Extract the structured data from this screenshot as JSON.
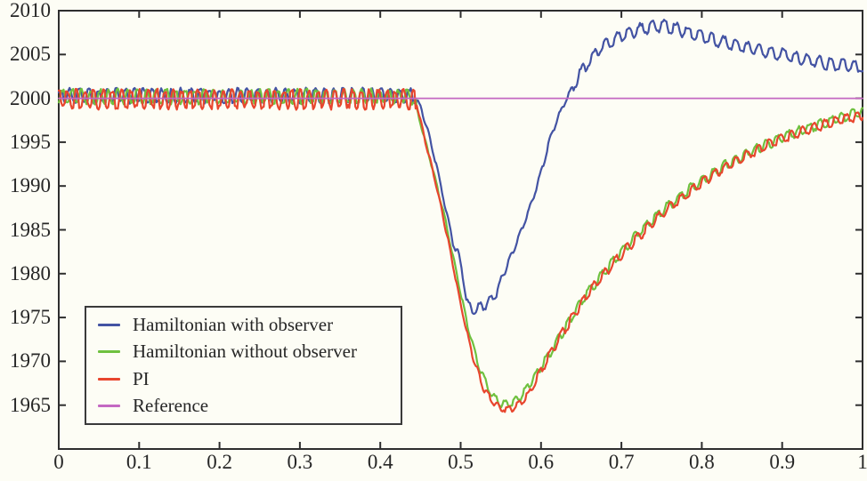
{
  "figure": {
    "background": "#fdfdf5",
    "frame_color": "#2e2e2e",
    "text_color": "#262626",
    "legend_border_color": "#3a3a3a"
  },
  "chart_data": {
    "type": "line",
    "title": "",
    "xlabel": "",
    "ylabel": "",
    "xlim": [
      0,
      1
    ],
    "ylim": [
      1960,
      2010
    ],
    "grid": false,
    "box": true,
    "tick_style": "inward-all-sides",
    "legend": {
      "position": "bottom-left",
      "border": true
    },
    "x_axis": {
      "tick_values": [
        0,
        0.1,
        0.2,
        0.3,
        0.4,
        0.5,
        0.6,
        0.7,
        0.8,
        0.9,
        1
      ],
      "tick_labels": [
        "0",
        "0.1",
        "0.2",
        "0.3",
        "0.4",
        "0.5",
        "0.6",
        "0.7",
        "0.8",
        "0.9",
        "1"
      ]
    },
    "y_axis": {
      "tick_values": [
        1965,
        1970,
        1975,
        1980,
        1985,
        1990,
        1995,
        2000,
        2005,
        2010
      ],
      "tick_labels": [
        "1965",
        "1970",
        "1975",
        "1980",
        "1985",
        "1990",
        "1995",
        "2000",
        "2005",
        "2010"
      ]
    },
    "series": [
      {
        "name": "Hamiltonian with observer",
        "color": "#4353a3",
        "width": 2.2,
        "trend": [
          [
            0,
            2000.3
          ],
          [
            0.443,
            2000.3
          ],
          [
            0.45,
            1999
          ],
          [
            0.46,
            1996
          ],
          [
            0.47,
            1992.3
          ],
          [
            0.48,
            1988
          ],
          [
            0.49,
            1983.8
          ],
          [
            0.497,
            1982.2
          ],
          [
            0.503,
            1979.5
          ],
          [
            0.508,
            1976.8
          ],
          [
            0.515,
            1975.6
          ],
          [
            0.522,
            1976.2
          ],
          [
            0.53,
            1976.3
          ],
          [
            0.545,
            1977.8
          ],
          [
            0.553,
            1980
          ],
          [
            0.565,
            1982.5
          ],
          [
            0.576,
            1985
          ],
          [
            0.586,
            1987.5
          ],
          [
            0.595,
            1990
          ],
          [
            0.603,
            1992.5
          ],
          [
            0.61,
            1995
          ],
          [
            0.62,
            1997.6
          ],
          [
            0.632,
            2000
          ],
          [
            0.645,
            2002.3
          ],
          [
            0.66,
            2004.3
          ],
          [
            0.675,
            2005.8
          ],
          [
            0.69,
            2006.7
          ],
          [
            0.705,
            2007.3
          ],
          [
            0.72,
            2007.8
          ],
          [
            0.735,
            2008.1
          ],
          [
            0.75,
            2008.3
          ],
          [
            0.765,
            2008
          ],
          [
            0.78,
            2007.6
          ],
          [
            0.81,
            2006.8
          ],
          [
            0.84,
            2006.1
          ],
          [
            0.87,
            2005.6
          ],
          [
            0.9,
            2005
          ],
          [
            0.93,
            2004.4
          ],
          [
            0.96,
            2003.9
          ],
          [
            1,
            2003.5
          ]
        ],
        "noise": [
          {
            "x0": 0,
            "x1": 0.445,
            "amp": 0.9,
            "period": 0.012
          },
          {
            "x0": 0.445,
            "x1": 0.49,
            "amp": 0.25,
            "period": 0.012
          },
          {
            "x0": 0.49,
            "x1": 0.56,
            "amp": 0.5,
            "period": 0.013
          },
          {
            "x0": 0.56,
            "x1": 0.64,
            "amp": 0.3,
            "period": 0.013
          },
          {
            "x0": 0.64,
            "x1": 1,
            "amp": 0.75,
            "period": 0.015
          }
        ]
      },
      {
        "name": "Hamiltonian without observer",
        "color": "#6fc13f",
        "width": 2.2,
        "trend": [
          [
            0,
            2000.2
          ],
          [
            0.441,
            2000.2
          ],
          [
            0.452,
            1996.5
          ],
          [
            0.465,
            1992
          ],
          [
            0.48,
            1986.5
          ],
          [
            0.495,
            1980
          ],
          [
            0.51,
            1973.5
          ],
          [
            0.525,
            1968.8
          ],
          [
            0.54,
            1966
          ],
          [
            0.55,
            1965.2
          ],
          [
            0.56,
            1965.1
          ],
          [
            0.575,
            1966
          ],
          [
            0.59,
            1968
          ],
          [
            0.61,
            1970.8
          ],
          [
            0.63,
            1973.8
          ],
          [
            0.65,
            1976.9
          ],
          [
            0.67,
            1979.2
          ],
          [
            0.69,
            1981.5
          ],
          [
            0.71,
            1983.5
          ],
          [
            0.73,
            1985.4
          ],
          [
            0.75,
            1987.1
          ],
          [
            0.77,
            1988.6
          ],
          [
            0.79,
            1990
          ],
          [
            0.81,
            1991.2
          ],
          [
            0.83,
            1992.4
          ],
          [
            0.85,
            1993.4
          ],
          [
            0.87,
            1994.3
          ],
          [
            0.89,
            1995.1
          ],
          [
            0.91,
            1995.9
          ],
          [
            0.93,
            1996.5
          ],
          [
            0.95,
            1997.1
          ],
          [
            0.97,
            1997.7
          ],
          [
            1,
            1998.5
          ]
        ],
        "noise": [
          {
            "x0": 0,
            "x1": 0.445,
            "amp": 0.9,
            "period": 0.012
          },
          {
            "x0": 0.445,
            "x1": 0.52,
            "amp": 0.25,
            "period": 0.012
          },
          {
            "x0": 0.52,
            "x1": 0.6,
            "amp": 0.45,
            "period": 0.013
          },
          {
            "x0": 0.6,
            "x1": 1,
            "amp": 0.6,
            "period": 0.014
          }
        ]
      },
      {
        "name": "PI",
        "color": "#e8462e",
        "width": 2.2,
        "trend": [
          [
            0,
            1999.9
          ],
          [
            0.444,
            1999.9
          ],
          [
            0.455,
            1995.5
          ],
          [
            0.47,
            1990
          ],
          [
            0.485,
            1983.5
          ],
          [
            0.5,
            1976.5
          ],
          [
            0.515,
            1970.5
          ],
          [
            0.53,
            1966.6
          ],
          [
            0.545,
            1964.9
          ],
          [
            0.558,
            1964.5
          ],
          [
            0.57,
            1964.9
          ],
          [
            0.585,
            1966.3
          ],
          [
            0.6,
            1969
          ],
          [
            0.62,
            1972.2
          ],
          [
            0.64,
            1975.2
          ],
          [
            0.66,
            1977.9
          ],
          [
            0.68,
            1980.1
          ],
          [
            0.7,
            1982.2
          ],
          [
            0.72,
            1984.1
          ],
          [
            0.74,
            1985.9
          ],
          [
            0.76,
            1987.6
          ],
          [
            0.78,
            1989
          ],
          [
            0.8,
            1990.4
          ],
          [
            0.82,
            1991.6
          ],
          [
            0.84,
            1992.7
          ],
          [
            0.86,
            1993.7
          ],
          [
            0.88,
            1994.6
          ],
          [
            0.9,
            1995.4
          ],
          [
            0.92,
            1996.1
          ],
          [
            0.94,
            1996.7
          ],
          [
            0.96,
            1997.2
          ],
          [
            0.98,
            1997.7
          ],
          [
            1,
            1998.1
          ]
        ],
        "noise": [
          {
            "x0": 0,
            "x1": 0.445,
            "amp": 1.2,
            "period": 0.011
          },
          {
            "x0": 0.445,
            "x1": 0.52,
            "amp": 0.25,
            "period": 0.012
          },
          {
            "x0": 0.52,
            "x1": 0.6,
            "amp": 0.45,
            "period": 0.013
          },
          {
            "x0": 0.6,
            "x1": 1,
            "amp": 0.6,
            "period": 0.014
          }
        ]
      },
      {
        "name": "Reference",
        "color": "#c468c2",
        "width": 1.7,
        "trend": [
          [
            0,
            2000
          ],
          [
            1,
            2000
          ]
        ],
        "noise": []
      }
    ]
  }
}
